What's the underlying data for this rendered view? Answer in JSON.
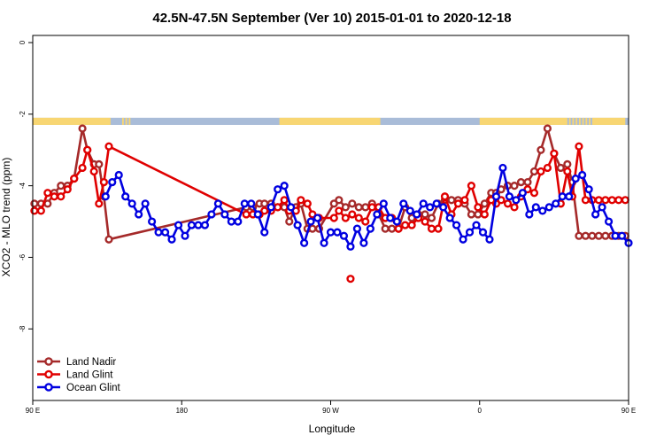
{
  "chart_data": {
    "type": "line",
    "title": "42.5N-47.5N September (Ver 10)   2015-01-01 to 2020-12-18",
    "xlabel": "Longitude",
    "ylabel": "XCO2 - MLO trend (ppm)",
    "xlim": [
      90,
      450
    ],
    "ylim": [
      -10,
      0.2
    ],
    "xticks": [
      {
        "value": 90,
        "label": "90 E"
      },
      {
        "value": 180,
        "label": "180"
      },
      {
        "value": 270,
        "label": "90 W"
      },
      {
        "value": 360,
        "label": "0"
      },
      {
        "value": 450,
        "label": "90 E"
      }
    ],
    "yticks": [
      {
        "value": 0,
        "label": "0"
      },
      {
        "value": -2,
        "label": "-2"
      },
      {
        "value": -4,
        "label": "-4"
      },
      {
        "value": -6,
        "label": "-6"
      },
      {
        "value": -8,
        "label": "-8"
      }
    ],
    "grid": false,
    "legend_position": "bottom-left",
    "land_sea_band": {
      "y_range": [
        -2.3,
        -2.1
      ],
      "land_color": "#f8d673",
      "ocean_color": "#a9bcd8",
      "land_intervals": [
        [
          90,
          137
        ],
        [
          144,
          145
        ],
        [
          146,
          147
        ],
        [
          148,
          149
        ],
        [
          239,
          300
        ],
        [
          360,
          413
        ],
        [
          414,
          415
        ],
        [
          416,
          417
        ],
        [
          418,
          419
        ],
        [
          420,
          421
        ],
        [
          422,
          423
        ],
        [
          424,
          425
        ],
        [
          426,
          427
        ],
        [
          428,
          448
        ]
      ]
    },
    "series": [
      {
        "name": "Land Nadir",
        "color": "#a52a2a",
        "x": [
          91,
          95,
          99,
          103,
          107,
          111,
          115,
          120,
          123,
          127,
          130,
          133,
          136,
          219,
          223,
          227,
          230,
          234,
          238,
          242,
          245,
          249,
          252,
          256,
          259,
          263,
          272,
          275,
          279,
          283,
          287,
          291,
          295,
          299,
          303,
          307,
          311,
          315,
          319,
          323,
          327,
          331,
          335,
          339,
          343,
          347,
          351,
          355,
          359,
          363,
          367,
          370,
          373,
          377,
          381,
          385,
          389,
          393,
          397,
          401,
          405,
          409,
          413,
          416,
          420,
          424,
          428,
          432,
          436,
          440,
          444,
          448
        ],
        "y": [
          -4.5,
          -4.5,
          -4.5,
          -4.2,
          -4.0,
          -4.0,
          -3.8,
          -2.4,
          -3.0,
          -3.4,
          -3.4,
          -4.3,
          -5.5,
          -4.6,
          -4.6,
          -4.5,
          -4.5,
          -4.5,
          -4.6,
          -4.6,
          -5.0,
          -4.6,
          -4.5,
          -5.2,
          -5.2,
          -5.2,
          -4.5,
          -4.4,
          -4.6,
          -4.5,
          -4.6,
          -4.6,
          -4.5,
          -4.8,
          -5.2,
          -5.2,
          -5.2,
          -4.6,
          -4.9,
          -4.8,
          -4.8,
          -4.9,
          -4.5,
          -4.4,
          -4.4,
          -4.4,
          -4.5,
          -4.8,
          -4.8,
          -4.5,
          -4.2,
          -4.2,
          -4.1,
          -4.0,
          -4.0,
          -3.9,
          -3.9,
          -3.6,
          -3.0,
          -2.4,
          -3.1,
          -3.5,
          -3.4,
          -3.9,
          -5.4,
          -5.4,
          -5.4,
          -5.4,
          -5.4,
          -5.4,
          -5.4,
          -5.4
        ]
      },
      {
        "name": "Land Glint",
        "color": "#e00000",
        "x": [
          91,
          95,
          99,
          103,
          107,
          111,
          115,
          120,
          123,
          127,
          130,
          133,
          136,
          219,
          223,
          227,
          230,
          234,
          238,
          242,
          245,
          249,
          252,
          256,
          259,
          263,
          272,
          275,
          279,
          283,
          287,
          291,
          295,
          299,
          303,
          307,
          311,
          315,
          319,
          323,
          327,
          331,
          335,
          339,
          343,
          347,
          351,
          355,
          359,
          363,
          367,
          370,
          373,
          377,
          381,
          385,
          389,
          393,
          397,
          401,
          405,
          409,
          413,
          416,
          420,
          424,
          428,
          432,
          436,
          440,
          444,
          448
        ],
        "y": [
          -4.7,
          -4.7,
          -4.2,
          -4.3,
          -4.3,
          -4.1,
          -3.8,
          -3.5,
          -3.0,
          -3.6,
          -4.5,
          -3.9,
          -2.9,
          -4.8,
          -4.8,
          -4.8,
          -4.7,
          -4.7,
          -4.6,
          -4.4,
          -4.7,
          -4.7,
          -4.4,
          -4.5,
          -4.8,
          -4.9,
          -4.9,
          -4.7,
          -4.9,
          -4.8,
          -4.9,
          -5.0,
          -4.6,
          -4.6,
          -4.9,
          -4.9,
          -5.2,
          -5.1,
          -5.1,
          -4.9,
          -5.0,
          -5.2,
          -5.2,
          -4.3,
          -4.8,
          -4.5,
          -4.4,
          -4.0,
          -4.6,
          -4.8,
          -4.4,
          -4.5,
          -4.4,
          -4.5,
          -4.6,
          -4.3,
          -4.1,
          -4.2,
          -3.6,
          -3.5,
          -3.1,
          -4.5,
          -3.6,
          -4.3,
          -2.9,
          -4.4,
          -4.4,
          -4.4,
          -4.4,
          -4.4,
          -4.4,
          -4.4
        ]
      },
      {
        "name": "Ocean Glint",
        "color": "#0000e0",
        "x": [
          134,
          138,
          142,
          146,
          150,
          154,
          158,
          162,
          166,
          170,
          174,
          178,
          182,
          186,
          190,
          194,
          198,
          202,
          206,
          210,
          214,
          218,
          222,
          226,
          230,
          234,
          238,
          242,
          246,
          250,
          254,
          258,
          262,
          266,
          270,
          274,
          278,
          282,
          286,
          290,
          294,
          298,
          302,
          306,
          310,
          314,
          318,
          322,
          326,
          330,
          334,
          338,
          342,
          346,
          350,
          354,
          358,
          362,
          366,
          370,
          374,
          378,
          382,
          386,
          390,
          394,
          398,
          402,
          406,
          410,
          414,
          418,
          422,
          426,
          430,
          434,
          438,
          442,
          446,
          450
        ],
        "y": [
          -4.3,
          -3.9,
          -3.7,
          -4.3,
          -4.5,
          -4.8,
          -4.5,
          -5.0,
          -5.3,
          -5.3,
          -5.5,
          -5.1,
          -5.4,
          -5.1,
          -5.1,
          -5.1,
          -4.8,
          -4.5,
          -4.8,
          -5.0,
          -5.0,
          -4.5,
          -4.5,
          -4.8,
          -5.3,
          -4.6,
          -4.1,
          -4.0,
          -4.6,
          -5.1,
          -5.6,
          -5.0,
          -4.9,
          -5.6,
          -5.3,
          -5.3,
          -5.4,
          -5.7,
          -5.2,
          -5.6,
          -5.2,
          -4.8,
          -4.5,
          -4.9,
          -5.0,
          -4.5,
          -4.7,
          -4.8,
          -4.5,
          -4.6,
          -4.5,
          -4.6,
          -4.9,
          -5.1,
          -5.5,
          -5.3,
          -5.1,
          -5.3,
          -5.5,
          -4.3,
          -3.5,
          -4.3,
          -4.4,
          -4.2,
          -4.8,
          -4.6,
          -4.7,
          -4.6,
          -4.5,
          -4.3,
          -4.3,
          -3.8,
          -3.7,
          -4.1,
          -4.8,
          -4.6,
          -5.0,
          -5.4,
          -5.4,
          -5.6
        ]
      }
    ],
    "outliers": [
      {
        "series": "Land Glint",
        "x": 282,
        "y": -6.6
      }
    ]
  }
}
